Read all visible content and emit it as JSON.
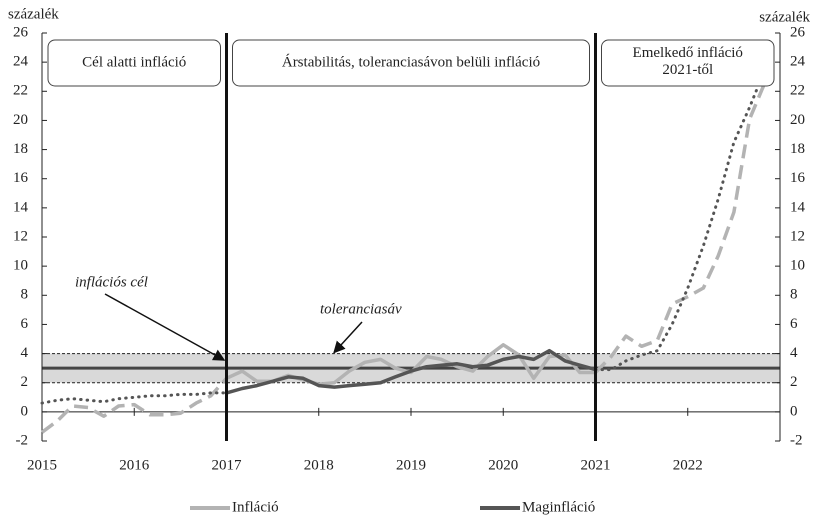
{
  "chart_data": {
    "type": "line",
    "y_label": "százalék",
    "y2_label": "százalék",
    "xlim": [
      2015,
      2023
    ],
    "xticks": [
      2015,
      2016,
      2017,
      2018,
      2019,
      2020,
      2021,
      2022
    ],
    "ylim": [
      -2,
      26
    ],
    "yticks": [
      -2,
      0,
      2,
      4,
      6,
      8,
      10,
      12,
      14,
      16,
      18,
      20,
      22,
      24,
      26
    ],
    "y2lim": [
      -2,
      26
    ],
    "y2ticks": [
      -2,
      0,
      2,
      4,
      6,
      8,
      10,
      12,
      14,
      16,
      18,
      20,
      22,
      24,
      26
    ],
    "tolerance_band": [
      2,
      4
    ],
    "target": 3,
    "band_color": "#d9d9d9",
    "periods": [
      {
        "label": "Cél alatti infláció",
        "x": [
          2015,
          2017
        ]
      },
      {
        "label": "Árstabilitás, toleranciasávon belüli infláció",
        "x": [
          2017,
          2021
        ]
      },
      {
        "label": "Emelkedő infláció 2021-től",
        "x": [
          2021,
          2023
        ]
      }
    ],
    "annotations": [
      {
        "text": "inflációs cél",
        "x": 2016.0,
        "y": 3
      },
      {
        "text": "toleranciasáv",
        "x": 2018.1,
        "y": 4
      }
    ],
    "x": [
      2015.0,
      2015.17,
      2015.33,
      2015.5,
      2015.67,
      2015.83,
      2016.0,
      2016.17,
      2016.33,
      2016.5,
      2016.67,
      2016.83,
      2017.0,
      2017.17,
      2017.33,
      2017.5,
      2017.67,
      2017.83,
      2018.0,
      2018.17,
      2018.33,
      2018.5,
      2018.67,
      2018.83,
      2019.0,
      2019.17,
      2019.33,
      2019.5,
      2019.67,
      2019.83,
      2020.0,
      2020.17,
      2020.33,
      2020.5,
      2020.67,
      2020.83,
      2021.0,
      2021.17,
      2021.33,
      2021.5,
      2021.67,
      2021.83,
      2022.0,
      2022.17,
      2022.33,
      2022.5,
      2022.67,
      2022.83,
      2022.92
    ],
    "series": [
      {
        "name": "Infláció",
        "color": "#b3b3b3",
        "style_by_period": [
          "dashed",
          "solid",
          "dashed"
        ],
        "values": [
          -1.4,
          -0.6,
          0.4,
          0.3,
          -0.3,
          0.4,
          0.5,
          -0.2,
          -0.2,
          -0.1,
          0.6,
          1.1,
          2.3,
          2.8,
          2.1,
          2.1,
          2.5,
          2.2,
          1.9,
          2.0,
          2.8,
          3.4,
          3.6,
          3.0,
          2.7,
          3.8,
          3.6,
          3.1,
          2.8,
          3.8,
          4.6,
          3.9,
          2.3,
          3.8,
          3.9,
          2.7,
          2.7,
          3.8,
          5.2,
          4.5,
          4.9,
          7.4,
          7.9,
          8.5,
          10.7,
          13.7,
          20.1,
          22.5,
          24.5
        ]
      },
      {
        "name": "Maginfláció",
        "color": "#555555",
        "style_by_period": [
          "dotted",
          "solid",
          "dotted"
        ],
        "values": [
          0.6,
          0.8,
          0.9,
          0.8,
          0.7,
          0.9,
          1.0,
          1.1,
          1.1,
          1.2,
          1.2,
          1.3,
          1.3,
          1.6,
          1.8,
          2.1,
          2.4,
          2.3,
          1.8,
          1.7,
          1.8,
          1.9,
          2.0,
          2.4,
          2.8,
          3.1,
          3.2,
          3.3,
          3.1,
          3.2,
          3.6,
          3.8,
          3.6,
          4.2,
          3.5,
          3.2,
          2.9,
          2.9,
          3.5,
          3.9,
          4.2,
          6.0,
          8.5,
          11.4,
          14.6,
          18.5,
          20.9,
          23.4,
          24.9
        ]
      }
    ]
  }
}
